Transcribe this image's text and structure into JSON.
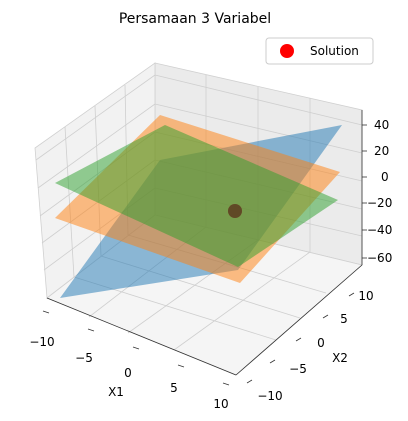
{
  "chart_data": {
    "type": "surface3d",
    "title": "Persamaan 3 Variabel",
    "xlabel": "X1",
    "ylabel": "X2",
    "zlabel": "",
    "x_ticks": [
      "−10",
      "−5",
      "0",
      "5",
      "10"
    ],
    "y_ticks": [
      "−10",
      "−5",
      "0",
      "5",
      "10"
    ],
    "z_ticks": [
      "−60",
      "−40",
      "−20",
      "0",
      "20",
      "40"
    ],
    "xlim": [
      -10,
      10
    ],
    "ylim": [
      -10,
      10
    ],
    "zlim": [
      -60,
      45
    ],
    "grid": true,
    "legend_position": "top-right",
    "legend": [
      {
        "label": "Solution",
        "marker": "circle",
        "color": "#ff0000"
      }
    ],
    "planes": [
      {
        "color": "#1f77b4",
        "opacity": 0.5
      },
      {
        "color": "#ff7f0e",
        "opacity": 0.5
      },
      {
        "color": "#2ca02c",
        "opacity": 0.5
      }
    ],
    "solution_point": {
      "color": "#ff0000"
    }
  }
}
